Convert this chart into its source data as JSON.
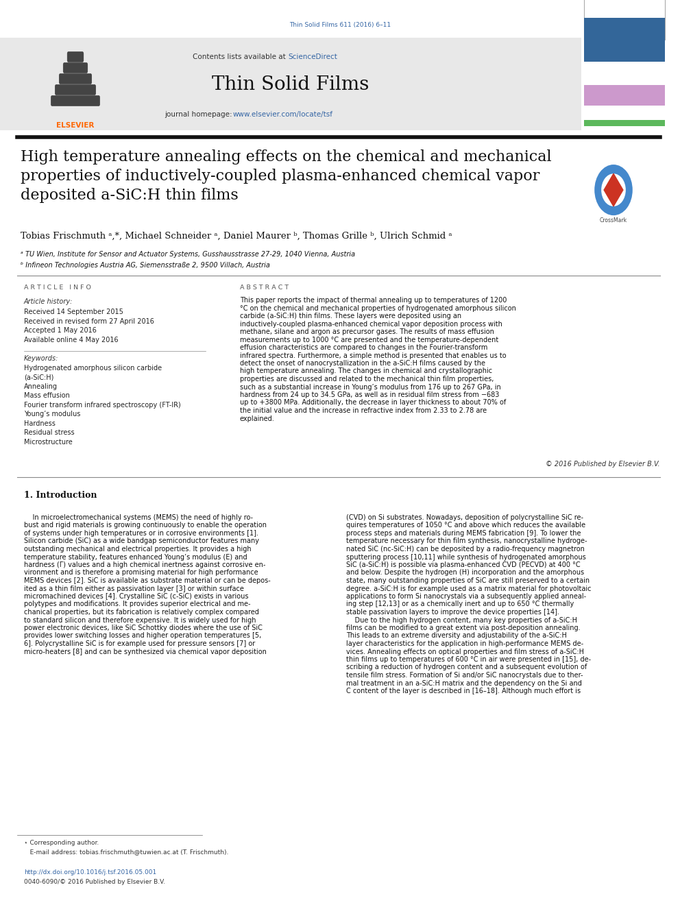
{
  "page_width": 9.92,
  "page_height": 13.23,
  "background_color": "#ffffff",
  "top_citation": "Thin Solid Films 611 (2016) 6–11",
  "journal_name": "Thin Solid Films",
  "contents_text": "Contents lists available at",
  "sciencedirect_text": "ScienceDirect",
  "homepage_label": "journal homepage: ",
  "homepage_url": "www.elsevier.com/locate/tsf",
  "link_color": "#3465a4",
  "title": "High temperature annealing effects on the chemical and mechanical\nproperties of inductively-coupled plasma-enhanced chemical vapor\ndeposited a-SiC:H thin films",
  "authors": "Tobias Frischmuth ᵃ,*, Michael Schneider ᵃ, Daniel Maurer ᵇ, Thomas Grille ᵇ, Ulrich Schmid ᵃ",
  "affiliation_a": "ᵃ TU Wien, Institute for Sensor and Actuator Systems, Gusshausstrasse 27-29, 1040 Vienna, Austria",
  "affiliation_b": "ᵇ Infineon Technologies Austria AG, Siemensstraße 2, 9500 Villach, Austria",
  "article_info_header": "A R T I C L E   I N F O",
  "article_history_header": "Article history:",
  "received": "Received 14 September 2015",
  "revised": "Received in revised form 27 April 2016",
  "accepted": "Accepted 1 May 2016",
  "available": "Available online 4 May 2016",
  "keywords_header": "Keywords:",
  "keywords": [
    "Hydrogenated amorphous silicon carbide",
    "(a-SiC:H)",
    "Annealing",
    "Mass effusion",
    "Fourier transform infrared spectroscopy (FT-IR)",
    "Young’s modulus",
    "Hardness",
    "Residual stress",
    "Microstructure"
  ],
  "abstract_header": "A B S T R A C T",
  "abstract_text": "This paper reports the impact of thermal annealing up to temperatures of 1200 °C on the chemical and mechanical properties of hydrogenated amorphous silicon carbide (a-SiC:H) thin films. These layers were deposited using an inductively-coupled plasma-enhanced chemical vapor deposition process with methane, silane and argon as precursor gases. The results of mass effusion measurements up to 1000 °C are presented and the temperature-dependent effusion characteristics are compared to changes in the Fourier-transform infrared spectra. Furthermore, a simple method is presented that enables us to detect the onset of nanocrystallization in the a-SiC:H films caused by the high temperature annealing. The changes in chemical and crystallographic properties are discussed and related to the mechanical thin film properties, such as a substantial increase in Young’s modulus from 176 up to 267 GPa, in hardness from 24 up to 34.5 GPa, as well as in residual film stress from −683 up to +3800 MPa. Additionally, the decrease in layer thickness to about 70% of the initial value and the increase in refractive index from 2.33 to 2.78 are explained.",
  "copyright": "© 2016 Published by Elsevier B.V.",
  "section1_header": "1. Introduction",
  "intro_col1_lines": [
    "    In microelectromechanical systems (MEMS) the need of highly ro-",
    "bust and rigid materials is growing continuously to enable the operation",
    "of systems under high temperatures or in corrosive environments [1].",
    "Silicon carbide (SiC) as a wide bandgap semiconductor features many",
    "outstanding mechanical and electrical properties. It provides a high",
    "temperature stability, features enhanced Young’s modulus (E) and",
    "hardness (Γ) values and a high chemical inertness against corrosive en-",
    "vironment and is therefore a promising material for high performance",
    "MEMS devices [2]. SiC is available as substrate material or can be depos-",
    "ited as a thin film either as passivation layer [3] or within surface",
    "micromachined devices [4]. Crystalline SiC (c-SiC) exists in various",
    "polytypes and modifications. It provides superior electrical and me-",
    "chanical properties, but its fabrication is relatively complex compared",
    "to standard silicon and therefore expensive. It is widely used for high",
    "power electronic devices, like SiC Schottky diodes where the use of SiC",
    "provides lower switching losses and higher operation temperatures [5,",
    "6]. Polycrystalline SiC is for example used for pressure sensors [7] or",
    "micro-heaters [8] and can be synthesized via chemical vapor deposition"
  ],
  "intro_col2_lines": [
    "(CVD) on Si substrates. Nowadays, deposition of polycrystalline SiC re-",
    "quires temperatures of 1050 °C and above which reduces the available",
    "process steps and materials during MEMS fabrication [9]. To lower the",
    "temperature necessary for thin film synthesis, nanocrystalline hydroge-",
    "nated SiC (nc-SiC:H) can be deposited by a radio-frequency magnetron",
    "sputtering process [10,11] while synthesis of hydrogenated amorphous",
    "SiC (a-SiC:H) is possible via plasma-enhanced CVD (PECVD) at 400 °C",
    "and below. Despite the hydrogen (H) incorporation and the amorphous",
    "state, many outstanding properties of SiC are still preserved to a certain",
    "degree. a-SiC:H is for example used as a matrix material for photovoltaic",
    "applications to form Si nanocrystals via a subsequently applied anneal-",
    "ing step [12,13] or as a chemically inert and up to 650 °C thermally",
    "stable passivation layers to improve the device properties [14].",
    "    Due to the high hydrogen content, many key properties of a-SiC:H",
    "films can be modified to a great extent via post-deposition annealing.",
    "This leads to an extreme diversity and adjustability of the a-SiC:H",
    "layer characteristics for the application in high-performance MEMS de-",
    "vices. Annealing effects on optical properties and film stress of a-SiC:H",
    "thin films up to temperatures of 600 °C in air were presented in [15], de-",
    "scribing a reduction of hydrogen content and a subsequent evolution of",
    "tensile film stress. Formation of Si and/or SiC nanocrystals due to ther-",
    "mal treatment in an a-SiC:H matrix and the dependency on the Si and",
    "C content of the layer is described in [16–18]. Although much effort is"
  ],
  "footer_star": "⋆ Corresponding author.",
  "footer_email": "   E-mail address: tobias.frischmuth@tuwien.ac.at (T. Frischmuth).",
  "doi_text": "http://dx.doi.org/10.1016/j.tsf.2016.05.001",
  "issn_text": "0040-6090/© 2016 Published by Elsevier B.V.",
  "header_bg": "#e8e8e8",
  "elsevier_orange": "#FF6600",
  "cover_green": "#5cb85c",
  "cover_blue": "#336699",
  "cover_purple": "#cc99cc",
  "cover_text_color": "#ffffff"
}
